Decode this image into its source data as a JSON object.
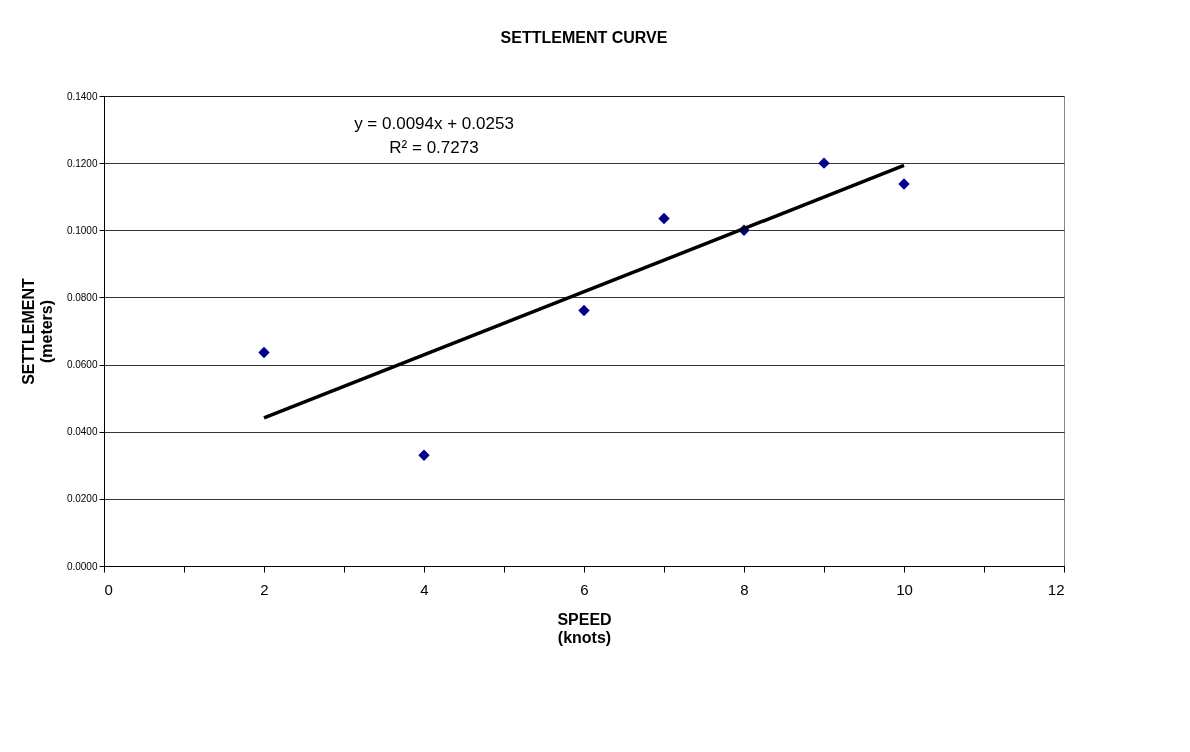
{
  "chart_data": {
    "type": "scatter",
    "title": "SETTLEMENT CURVE",
    "xlabel": "SPEED\n(knots)",
    "ylabel": "SETTLEMENT\n(meters)",
    "x": [
      2,
      4,
      6,
      7,
      8,
      9,
      10
    ],
    "series": [
      {
        "type": "scatter",
        "color": "#00008b",
        "marker": "diamond",
        "values": [
          0.0636,
          0.033,
          0.0761,
          0.1035,
          0.1,
          0.12,
          0.1138
        ]
      },
      {
        "type": "line",
        "color": "#000000",
        "x": [
          2,
          10
        ],
        "values": [
          0.0441,
          0.1193
        ]
      }
    ],
    "xlim": [
      0,
      12
    ],
    "xticks": [
      0,
      {
        "value": 1,
        "label": null
      },
      2,
      {
        "value": 3,
        "label": null
      },
      4,
      {
        "value": 5,
        "label": null
      },
      6,
      {
        "value": 7,
        "label": null
      },
      8,
      {
        "value": 9,
        "label": null
      },
      10,
      {
        "value": 11,
        "label": null
      },
      12
    ],
    "ylim": [
      0,
      0.14
    ],
    "yticks": [
      {
        "value": 0,
        "label": "0.0000"
      },
      {
        "value": 0.02,
        "label": "0.0200"
      },
      {
        "value": 0.04,
        "label": "0.0400"
      },
      {
        "value": 0.06,
        "label": "0.0600"
      },
      {
        "value": 0.08,
        "label": "0.0800"
      },
      {
        "value": 0.1,
        "label": "0.1000"
      },
      {
        "value": 0.12,
        "label": "0.1200"
      },
      {
        "value": 0.14,
        "label": "0.1400"
      }
    ],
    "grid": "y",
    "annotations": [
      "y = 0.0094x + 0.0253",
      "R² = 0.7273"
    ]
  }
}
